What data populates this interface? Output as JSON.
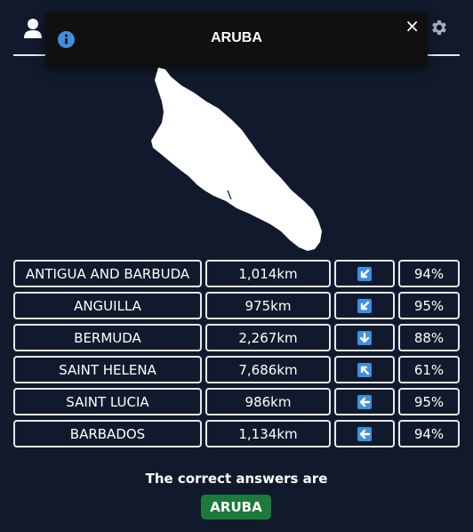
{
  "toast": {
    "title": "ARUBA",
    "close_label": "×"
  },
  "map": {
    "country": "ARUBA",
    "fill_color": "#ffffff"
  },
  "guesses": [
    {
      "name": "ANTIGUA AND BARBUDA",
      "distance": "1,014km",
      "direction": "south-west",
      "percent": "94%"
    },
    {
      "name": "ANGUILLA",
      "distance": "975km",
      "direction": "south-west",
      "percent": "95%"
    },
    {
      "name": "BERMUDA",
      "distance": "2,267km",
      "direction": "south",
      "percent": "88%"
    },
    {
      "name": "SAINT HELENA",
      "distance": "7,686km",
      "direction": "north-west",
      "percent": "61%"
    },
    {
      "name": "SAINT LUCIA",
      "distance": "986km",
      "direction": "west",
      "percent": "95%"
    },
    {
      "name": "BARBADOS",
      "distance": "1,134km",
      "direction": "west",
      "percent": "94%"
    }
  ],
  "result": {
    "label": "The correct answers are",
    "answer": "ARUBA"
  },
  "colors": {
    "background": "#111a2d",
    "arrow_box": "#3d8fe0",
    "answer_badge": "#1e7a3a",
    "info_icon": "#3d8fe0"
  },
  "icons": {
    "top_left": "user-icon",
    "top_right": "gear-icon",
    "toast": "info-icon"
  }
}
